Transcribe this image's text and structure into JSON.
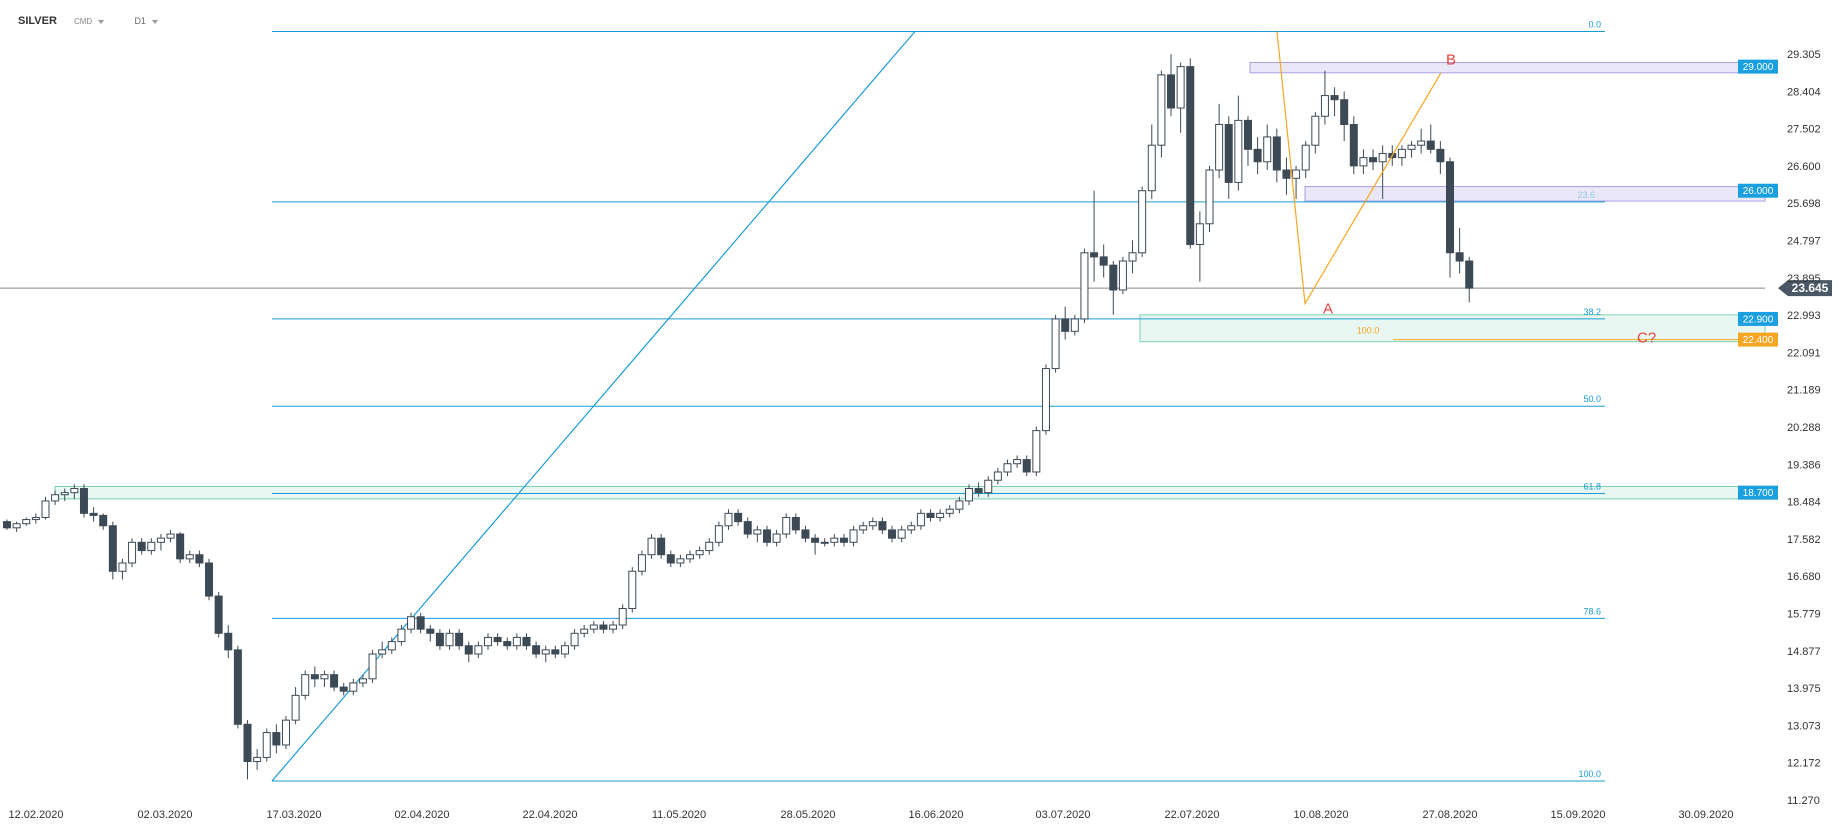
{
  "header": {
    "symbol": "SILVER",
    "market": "CMD",
    "timeframe": "D1"
  },
  "chart_data": {
    "type": "candlestick",
    "y_ticks": [
      "29.305",
      "28.404",
      "27.502",
      "26.600",
      "25.698",
      "24.797",
      "23.895",
      "22.993",
      "22.091",
      "21.189",
      "20.288",
      "19.386",
      "18.484",
      "17.582",
      "16.680",
      "15.779",
      "14.877",
      "13.975",
      "13.073",
      "12.172",
      "11.270"
    ],
    "x_ticks": [
      "12.02.2020",
      "02.03.2020",
      "17.03.2020",
      "02.04.2020",
      "22.04.2020",
      "11.05.2020",
      "28.05.2020",
      "16.06.2020",
      "03.07.2020",
      "22.07.2020",
      "10.08.2020",
      "27.08.2020",
      "15.09.2020",
      "30.09.2020"
    ],
    "ylim": [
      11.27,
      29.305
    ],
    "current_price": "23.645",
    "price_levels": [
      {
        "label": "29.000",
        "value": 29.0,
        "color": "#1aa0e0"
      },
      {
        "label": "26.000",
        "value": 26.0,
        "color": "#1aa0e0"
      },
      {
        "label": "22.900",
        "value": 22.9,
        "color": "#1aa0e0"
      },
      {
        "label": "22.400",
        "value": 22.4,
        "color": "#f5a623"
      },
      {
        "label": "18.700",
        "value": 18.7,
        "color": "#1aa0e0"
      }
    ],
    "fib_levels": [
      {
        "label": "0.0",
        "value": 29.85
      },
      {
        "label": "",
        "value": 25.73,
        "faint": "23.6"
      },
      {
        "label": "38.2",
        "value": 22.9
      },
      {
        "label": "50.0",
        "value": 20.79
      },
      {
        "label": "61.8",
        "value": 18.68
      },
      {
        "label": "78.6",
        "value": 15.66
      },
      {
        "label": "100.0",
        "value": 11.73
      }
    ],
    "fib_ext_label": "100.0",
    "wave_labels": {
      "a": "A",
      "b": "B",
      "c": "C?"
    },
    "colors": {
      "bear": "#3d4a56",
      "bull": "#ffffff",
      "fib": "#1a9bd6",
      "zone_purple": "#d9d5f2",
      "zone_green": "#d7f0e8",
      "orange": "#f5a623",
      "wave_text": "#e8413c"
    },
    "candles": [
      [
        18.0,
        18.05,
        17.8,
        17.85
      ],
      [
        17.85,
        18.0,
        17.75,
        17.95
      ],
      [
        17.95,
        18.1,
        17.9,
        18.05
      ],
      [
        18.05,
        18.2,
        17.95,
        18.1
      ],
      [
        18.1,
        18.6,
        18.05,
        18.5
      ],
      [
        18.5,
        18.75,
        18.4,
        18.65
      ],
      [
        18.65,
        18.8,
        18.5,
        18.7
      ],
      [
        18.7,
        18.9,
        18.55,
        18.8
      ],
      [
        18.8,
        18.9,
        18.1,
        18.2
      ],
      [
        18.2,
        18.35,
        18.0,
        18.15
      ],
      [
        18.15,
        18.2,
        17.8,
        17.9
      ],
      [
        17.9,
        18.0,
        16.6,
        16.8
      ],
      [
        16.8,
        17.1,
        16.6,
        17.0
      ],
      [
        17.0,
        17.6,
        16.9,
        17.5
      ],
      [
        17.5,
        17.6,
        17.2,
        17.3
      ],
      [
        17.3,
        17.6,
        17.2,
        17.5
      ],
      [
        17.5,
        17.7,
        17.3,
        17.6
      ],
      [
        17.6,
        17.8,
        17.5,
        17.7
      ],
      [
        17.7,
        17.75,
        17.0,
        17.1
      ],
      [
        17.1,
        17.3,
        17.0,
        17.2
      ],
      [
        17.2,
        17.3,
        16.9,
        17.0
      ],
      [
        17.0,
        17.1,
        16.1,
        16.2
      ],
      [
        16.2,
        16.3,
        15.2,
        15.3
      ],
      [
        15.3,
        15.5,
        14.7,
        14.9
      ],
      [
        14.9,
        15.0,
        13.0,
        13.1
      ],
      [
        13.1,
        13.2,
        11.77,
        12.2
      ],
      [
        12.2,
        12.5,
        12.0,
        12.3
      ],
      [
        12.3,
        13.0,
        12.2,
        12.9
      ],
      [
        12.9,
        13.1,
        12.4,
        12.6
      ],
      [
        12.6,
        13.3,
        12.5,
        13.2
      ],
      [
        13.2,
        14.0,
        13.1,
        13.8
      ],
      [
        13.8,
        14.4,
        13.7,
        14.3
      ],
      [
        14.3,
        14.5,
        14.0,
        14.2
      ],
      [
        14.2,
        14.4,
        14.0,
        14.3
      ],
      [
        14.3,
        14.4,
        13.9,
        14.0
      ],
      [
        14.0,
        14.1,
        13.8,
        13.9
      ],
      [
        13.9,
        14.2,
        13.8,
        14.1
      ],
      [
        14.1,
        14.3,
        14.0,
        14.2
      ],
      [
        14.2,
        14.9,
        14.1,
        14.8
      ],
      [
        14.8,
        15.1,
        14.7,
        14.9
      ],
      [
        14.9,
        15.2,
        14.8,
        15.1
      ],
      [
        15.1,
        15.5,
        15.0,
        15.4
      ],
      [
        15.4,
        15.8,
        15.3,
        15.7
      ],
      [
        15.7,
        15.8,
        15.3,
        15.4
      ],
      [
        15.4,
        15.5,
        15.1,
        15.3
      ],
      [
        15.3,
        15.4,
        14.9,
        15.0
      ],
      [
        15.0,
        15.4,
        14.9,
        15.3
      ],
      [
        15.3,
        15.4,
        14.9,
        15.0
      ],
      [
        15.0,
        15.1,
        14.6,
        14.8
      ],
      [
        14.8,
        15.1,
        14.7,
        15.0
      ],
      [
        15.0,
        15.3,
        14.9,
        15.2
      ],
      [
        15.2,
        15.3,
        15.0,
        15.1
      ],
      [
        15.1,
        15.2,
        14.9,
        15.0
      ],
      [
        15.0,
        15.3,
        14.9,
        15.2
      ],
      [
        15.2,
        15.3,
        14.9,
        15.0
      ],
      [
        15.0,
        15.1,
        14.7,
        14.8
      ],
      [
        14.8,
        15.0,
        14.6,
        14.9
      ],
      [
        14.9,
        15.0,
        14.7,
        14.8
      ],
      [
        14.8,
        15.1,
        14.7,
        15.0
      ],
      [
        15.0,
        15.4,
        14.9,
        15.3
      ],
      [
        15.3,
        15.5,
        15.2,
        15.4
      ],
      [
        15.4,
        15.6,
        15.3,
        15.5
      ],
      [
        15.5,
        15.6,
        15.3,
        15.4
      ],
      [
        15.4,
        15.6,
        15.3,
        15.5
      ],
      [
        15.5,
        16.0,
        15.4,
        15.9
      ],
      [
        15.9,
        16.9,
        15.8,
        16.8
      ],
      [
        16.8,
        17.3,
        16.7,
        17.2
      ],
      [
        17.2,
        17.7,
        17.1,
        17.6
      ],
      [
        17.6,
        17.7,
        17.1,
        17.2
      ],
      [
        17.2,
        17.3,
        16.9,
        17.0
      ],
      [
        17.0,
        17.2,
        16.9,
        17.1
      ],
      [
        17.1,
        17.3,
        17.0,
        17.2
      ],
      [
        17.2,
        17.4,
        17.1,
        17.3
      ],
      [
        17.3,
        17.6,
        17.2,
        17.5
      ],
      [
        17.5,
        18.0,
        17.4,
        17.9
      ],
      [
        17.9,
        18.3,
        17.8,
        18.2
      ],
      [
        18.2,
        18.3,
        17.9,
        18.0
      ],
      [
        18.0,
        18.1,
        17.6,
        17.7
      ],
      [
        17.7,
        17.9,
        17.5,
        17.8
      ],
      [
        17.8,
        17.9,
        17.4,
        17.5
      ],
      [
        17.5,
        17.8,
        17.4,
        17.7
      ],
      [
        17.7,
        18.2,
        17.6,
        18.1
      ],
      [
        18.1,
        18.2,
        17.7,
        17.8
      ],
      [
        17.8,
        17.9,
        17.5,
        17.6
      ],
      [
        17.6,
        17.7,
        17.2,
        17.5
      ],
      [
        17.5,
        17.6,
        17.4,
        17.5
      ],
      [
        17.5,
        17.7,
        17.4,
        17.6
      ],
      [
        17.6,
        17.7,
        17.4,
        17.5
      ],
      [
        17.5,
        17.9,
        17.4,
        17.8
      ],
      [
        17.8,
        18.0,
        17.7,
        17.9
      ],
      [
        17.9,
        18.1,
        17.8,
        18.0
      ],
      [
        18.0,
        18.1,
        17.7,
        17.8
      ],
      [
        17.8,
        17.9,
        17.5,
        17.6
      ],
      [
        17.6,
        17.9,
        17.5,
        17.8
      ],
      [
        17.8,
        18.0,
        17.7,
        17.9
      ],
      [
        17.9,
        18.3,
        17.8,
        18.2
      ],
      [
        18.2,
        18.3,
        18.0,
        18.1
      ],
      [
        18.1,
        18.3,
        18.0,
        18.2
      ],
      [
        18.2,
        18.4,
        18.1,
        18.3
      ],
      [
        18.3,
        18.6,
        18.2,
        18.5
      ],
      [
        18.5,
        18.9,
        18.4,
        18.8
      ],
      [
        18.8,
        18.95,
        18.6,
        18.7
      ],
      [
        18.7,
        19.1,
        18.6,
        19.0
      ],
      [
        19.0,
        19.3,
        18.9,
        19.2
      ],
      [
        19.2,
        19.5,
        19.1,
        19.4
      ],
      [
        19.4,
        19.6,
        19.3,
        19.5
      ],
      [
        19.5,
        19.6,
        19.1,
        19.2
      ],
      [
        19.2,
        20.3,
        19.1,
        20.2
      ],
      [
        20.2,
        21.8,
        20.1,
        21.7
      ],
      [
        21.7,
        23.0,
        21.6,
        22.9
      ],
      [
        22.9,
        23.2,
        22.4,
        22.6
      ],
      [
        22.6,
        23.0,
        22.5,
        22.9
      ],
      [
        22.9,
        24.6,
        22.8,
        24.5
      ],
      [
        24.5,
        26.0,
        23.8,
        24.4
      ],
      [
        24.4,
        24.7,
        23.9,
        24.2
      ],
      [
        24.2,
        24.3,
        23.0,
        23.6
      ],
      [
        23.6,
        24.4,
        23.5,
        24.3
      ],
      [
        24.3,
        24.8,
        24.0,
        24.5
      ],
      [
        24.5,
        26.1,
        24.4,
        26.0
      ],
      [
        26.0,
        27.6,
        25.8,
        27.1
      ],
      [
        27.1,
        28.9,
        26.8,
        28.8
      ],
      [
        28.8,
        29.3,
        27.8,
        28.0
      ],
      [
        28.0,
        29.1,
        27.4,
        29.0
      ],
      [
        29.0,
        29.2,
        24.6,
        24.7
      ],
      [
        24.7,
        25.5,
        23.8,
        25.2
      ],
      [
        25.2,
        26.6,
        25.0,
        26.5
      ],
      [
        26.5,
        28.1,
        26.3,
        27.6
      ],
      [
        27.6,
        27.8,
        25.8,
        26.2
      ],
      [
        26.2,
        28.3,
        26.0,
        27.7
      ],
      [
        27.7,
        27.8,
        26.6,
        27.0
      ],
      [
        27.0,
        27.3,
        26.4,
        26.7
      ],
      [
        26.7,
        27.6,
        26.5,
        27.3
      ],
      [
        27.3,
        27.5,
        26.2,
        26.5
      ],
      [
        26.5,
        26.8,
        25.9,
        26.3
      ],
      [
        26.3,
        26.6,
        25.8,
        26.5
      ],
      [
        26.5,
        27.2,
        26.3,
        27.1
      ],
      [
        27.1,
        27.9,
        26.9,
        27.8
      ],
      [
        27.8,
        28.9,
        27.6,
        28.3
      ],
      [
        28.3,
        28.5,
        27.8,
        28.2
      ],
      [
        28.2,
        28.4,
        27.2,
        27.6
      ],
      [
        27.6,
        27.8,
        26.4,
        26.6
      ],
      [
        26.6,
        27.0,
        26.4,
        26.8
      ],
      [
        26.8,
        27.0,
        26.5,
        26.7
      ],
      [
        26.7,
        27.1,
        25.8,
        26.9
      ],
      [
        26.9,
        27.1,
        26.6,
        26.8
      ],
      [
        26.8,
        27.1,
        26.6,
        27.0
      ],
      [
        27.0,
        27.2,
        26.8,
        27.1
      ],
      [
        27.1,
        27.5,
        26.9,
        27.2
      ],
      [
        27.2,
        27.6,
        26.9,
        27.0
      ],
      [
        27.0,
        27.2,
        26.4,
        26.7
      ],
      [
        26.7,
        26.8,
        23.9,
        24.5
      ],
      [
        24.5,
        25.1,
        24.0,
        24.3
      ],
      [
        24.3,
        24.4,
        23.3,
        23.645
      ]
    ]
  }
}
